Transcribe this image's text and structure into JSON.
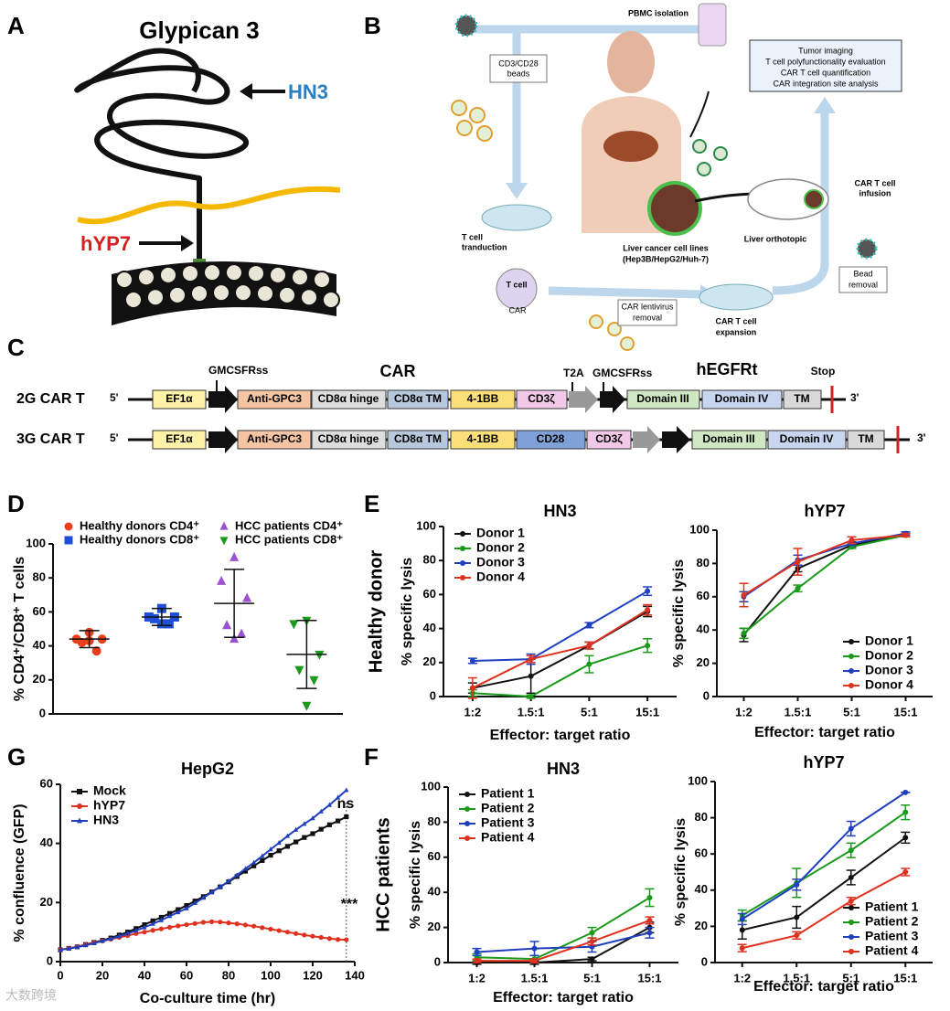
{
  "panel_letters": [
    "A",
    "B",
    "C",
    "D",
    "E",
    "F",
    "G"
  ],
  "diagram_a": {
    "title": "Glypican 3",
    "labels": [
      "HN3",
      "hYP7"
    ]
  },
  "diagram_b": {
    "labels": [
      "PBMC isolation",
      "CD3/CD28",
      "beads",
      "Tumor imaging",
      "T cell polyfunctionality evaluation",
      "CAR T cell quantification",
      "CAR integration site analysis",
      "T cell",
      "tranduction",
      "Liver cancer cell lines",
      "(Hep3B/HepG2/Huh-7)",
      "Liver orthotopic",
      "CAR T cell",
      "infusion",
      "T cell",
      "CAR",
      "CAR lentivirus",
      "removal",
      "CAR T cell",
      "expansion",
      "Bead",
      "removal"
    ]
  },
  "diagram_c": {
    "top_labels": [
      "GMCSFRss",
      "CAR",
      "T2A",
      "GMCSFRss",
      "hEGFRt",
      "Stop"
    ],
    "rows": [
      {
        "name": "2G CAR T",
        "five": "5'",
        "three": "3'",
        "boxes": [
          "EF1α",
          "Anti-GPC3",
          "CD8α hinge",
          "CD8α TM",
          "4-1BB",
          "CD3ζ",
          "Domain III",
          "Domain IV",
          "TM"
        ]
      },
      {
        "name": "3G CAR T",
        "five": "5'",
        "three": "3'",
        "boxes": [
          "EF1α",
          "Anti-GPC3",
          "CD8α hinge",
          "CD8α TM",
          "4-1BB",
          "CD28",
          "CD3ζ",
          "Domain III",
          "Domain IV",
          "TM"
        ]
      }
    ]
  },
  "chart_data": [
    {
      "type": "dotplot",
      "ylabel": "% CD4⁺/CD8⁺ T cells",
      "ylim": [
        0,
        100
      ],
      "yticks": [
        0,
        20,
        40,
        60,
        80,
        100
      ],
      "series": [
        {
          "name": "Healthy donors CD4⁺",
          "color": "#e8401c",
          "marker": "circle",
          "values": [
            48,
            44,
            44,
            42,
            37,
            43
          ],
          "mean": 44,
          "sd": 5
        },
        {
          "name": "Healthy donors CD8⁺",
          "color": "#1f4fd8",
          "marker": "square",
          "values": [
            62,
            57,
            57,
            56,
            53,
            53
          ],
          "mean": 57,
          "sd": 5
        },
        {
          "name": "HCC patients CD4⁺",
          "color": "#9a52d0",
          "marker": "triangle-up",
          "values": [
            92,
            78,
            68,
            52,
            47,
            44
          ],
          "mean": 65,
          "sd": 20
        },
        {
          "name": "HCC patients CD8⁺",
          "color": "#1a9a1a",
          "marker": "triangle-down",
          "values": [
            55,
            53,
            35,
            26,
            20,
            5
          ],
          "mean": 35,
          "sd": 20
        }
      ]
    },
    {
      "type": "line",
      "title": "HN3",
      "row_label": "Healthy donor",
      "ylabel": "% specific lysis",
      "xlabel": "Effector: target ratio",
      "categories": [
        "1:2",
        "1.5:1",
        "5:1",
        "15:1"
      ],
      "ylim": [
        0,
        100
      ],
      "yticks": [
        0,
        20,
        40,
        60,
        80,
        100
      ],
      "legend": "upper left",
      "series": [
        {
          "name": "Donor 1",
          "color": "#111111",
          "values": [
            5,
            12,
            30,
            50
          ],
          "errors": [
            3,
            10,
            2,
            3
          ]
        },
        {
          "name": "Donor 2",
          "color": "#1a9a1a",
          "values": [
            2,
            0,
            19,
            30
          ],
          "errors": [
            2,
            1,
            5,
            4
          ]
        },
        {
          "name": "Donor 3",
          "color": "#1f3fbf",
          "values": [
            21,
            22,
            42,
            62
          ],
          "errors": [
            1.5,
            3,
            1.5,
            2.5
          ]
        },
        {
          "name": "Donor 4",
          "color": "#e0301e",
          "values": [
            5,
            22,
            30,
            51
          ],
          "errors": [
            6,
            2,
            2,
            3
          ]
        }
      ]
    },
    {
      "type": "line",
      "title": "hYP7",
      "ylabel": "% specific lysis",
      "xlabel": "Effector: target ratio",
      "categories": [
        "1:2",
        "1.5:1",
        "5:1",
        "15:1"
      ],
      "ylim": [
        0,
        100
      ],
      "yticks": [
        0,
        20,
        40,
        60,
        80,
        100
      ],
      "legend": "lower right",
      "series": [
        {
          "name": "Donor 1",
          "color": "#111111",
          "values": [
            37,
            77,
            91,
            97
          ],
          "errors": [
            4,
            2,
            1,
            1
          ]
        },
        {
          "name": "Donor 2",
          "color": "#1a9a1a",
          "values": [
            38,
            65,
            90,
            97
          ],
          "errors": [
            3,
            2,
            1,
            1
          ]
        },
        {
          "name": "Donor 3",
          "color": "#1f3fbf",
          "values": [
            60,
            82,
            92,
            98
          ],
          "errors": [
            3,
            3,
            1,
            1
          ]
        },
        {
          "name": "Donor 4",
          "color": "#e0301e",
          "values": [
            61,
            81,
            94,
            97
          ],
          "errors": [
            7,
            8,
            2,
            1
          ]
        }
      ]
    },
    {
      "type": "line",
      "title": "HN3",
      "row_label": "HCC patients",
      "ylabel": "% specific lysis",
      "xlabel": "Effector: target ratio",
      "categories": [
        "1:2",
        "1.5:1",
        "5:1",
        "15:1"
      ],
      "ylim": [
        0,
        100
      ],
      "yticks": [
        0,
        20,
        40,
        60,
        80,
        100
      ],
      "legend": "upper left",
      "series": [
        {
          "name": "Patient 1",
          "color": "#111111",
          "values": [
            0,
            0,
            2,
            20
          ],
          "errors": [
            1,
            1,
            1,
            3
          ]
        },
        {
          "name": "Patient 2",
          "color": "#1a9a1a",
          "values": [
            3,
            2,
            17,
            37
          ],
          "errors": [
            2,
            2,
            3,
            5
          ]
        },
        {
          "name": "Patient 3",
          "color": "#1f3fbf",
          "values": [
            6,
            8,
            9,
            17
          ],
          "errors": [
            2,
            4,
            3,
            3
          ]
        },
        {
          "name": "Patient 4",
          "color": "#e0301e",
          "values": [
            1,
            1,
            12,
            24
          ],
          "errors": [
            1,
            1,
            2,
            2
          ]
        }
      ]
    },
    {
      "type": "line",
      "title": "hYP7",
      "ylabel": "% specific lysis",
      "xlabel": "Effector: target ratio",
      "categories": [
        "1:2",
        "1.5:1",
        "5:1",
        "15:1"
      ],
      "ylim": [
        0,
        100
      ],
      "yticks": [
        0,
        20,
        40,
        60,
        80,
        100
      ],
      "legend": "lower right",
      "series": [
        {
          "name": "Patient 1",
          "color": "#111111",
          "values": [
            18,
            25,
            47,
            69
          ],
          "errors": [
            5,
            6,
            4,
            3
          ]
        },
        {
          "name": "Patient 2",
          "color": "#1a9a1a",
          "values": [
            26,
            44,
            62,
            83
          ],
          "errors": [
            3,
            8,
            4,
            4
          ]
        },
        {
          "name": "Patient 3",
          "color": "#1f3fbf",
          "values": [
            24,
            43,
            74,
            94
          ],
          "errors": [
            3,
            3,
            4,
            0
          ]
        },
        {
          "name": "Patient 4",
          "color": "#e0301e",
          "values": [
            8,
            15,
            34,
            50
          ],
          "errors": [
            2,
            2,
            2,
            2
          ]
        }
      ]
    },
    {
      "type": "line",
      "title": "HepG2",
      "xlabel": "Co-culture time (hr)",
      "ylabel": "% confluence (GFP)",
      "x": [
        0,
        4,
        8,
        12,
        16,
        20,
        24,
        28,
        32,
        36,
        40,
        44,
        48,
        52,
        56,
        60,
        64,
        68,
        72,
        76,
        80,
        84,
        88,
        92,
        96,
        100,
        104,
        108,
        112,
        116,
        120,
        124,
        128,
        132,
        136
      ],
      "xlim": [
        0,
        140
      ],
      "xticks": [
        0,
        20,
        40,
        60,
        80,
        100,
        120,
        140
      ],
      "ylim": [
        0,
        60
      ],
      "yticks": [
        0,
        20,
        40,
        60
      ],
      "legend": "upper left",
      "annotations": [
        "ns",
        "***"
      ],
      "series": [
        {
          "name": "Mock",
          "color": "#111111",
          "marker": "square",
          "values": [
            4,
            4.5,
            5,
            5.8,
            6.5,
            7.2,
            8,
            9,
            10,
            11.2,
            12.5,
            13.8,
            15,
            16.3,
            17.6,
            19,
            20.5,
            22,
            23.6,
            25.3,
            27,
            28.8,
            30.6,
            32.4,
            34.2,
            36,
            37.5,
            39,
            40.5,
            42,
            43.3,
            44.8,
            46.3,
            47.6,
            49
          ]
        },
        {
          "name": "hYP7",
          "color": "#e0301e",
          "marker": "circle",
          "values": [
            4,
            4.5,
            5,
            5.7,
            6.4,
            7,
            7.6,
            8.2,
            8.8,
            9.5,
            10,
            10.6,
            11.1,
            11.6,
            12.1,
            12.5,
            12.9,
            13.3,
            13.5,
            13.4,
            13.1,
            12.8,
            12.4,
            12,
            11.5,
            11,
            10.5,
            10,
            9.5,
            9,
            8.6,
            8.2,
            7.8,
            7.5,
            7.4
          ]
        },
        {
          "name": "HN3",
          "color": "#1f3fbf",
          "marker": "triangle-up",
          "values": [
            4,
            4.4,
            4.9,
            5.5,
            6.2,
            7,
            7.7,
            8.6,
            9.5,
            10.5,
            11.6,
            12.8,
            14,
            15.4,
            16.7,
            18,
            19.8,
            21.6,
            23.5,
            25.3,
            27.2,
            29.3,
            31.4,
            33.5,
            35.7,
            38,
            40.2,
            42.5,
            44.6,
            46.6,
            48.5,
            50.8,
            53,
            55.5,
            58
          ]
        }
      ]
    }
  ],
  "watermark": "大数跨境"
}
